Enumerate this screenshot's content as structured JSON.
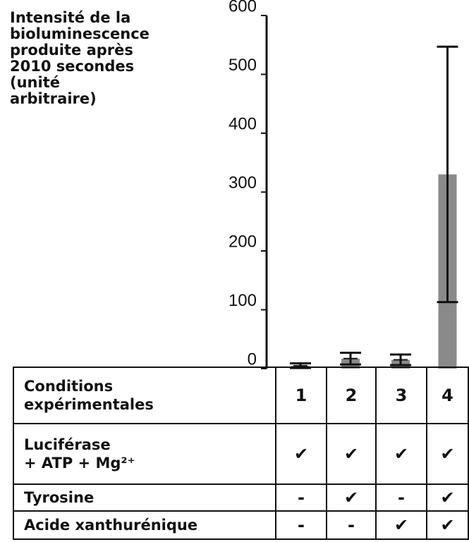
{
  "chart_data": {
    "type": "bar",
    "ylabel_lines": [
      "Intensité de la",
      "bioluminescence",
      "produite après",
      "2010 secondes",
      "(unité",
      "arbitraire)"
    ],
    "categories": [
      "1",
      "2",
      "3",
      "4"
    ],
    "values": [
      5,
      17,
      15,
      330
    ],
    "errors": [
      4,
      10,
      9,
      217
    ],
    "color": "#8a8a8a",
    "ylim": [
      0,
      600
    ],
    "yticks": [
      0,
      100,
      200,
      300,
      400,
      500,
      600
    ]
  },
  "table": {
    "header_lines": [
      "Conditions",
      "expérimentales"
    ],
    "rows": [
      {
        "label_lines": [
          "Luciférase",
          "+ ATP + Mg²⁺"
        ],
        "cells": [
          "✔",
          "✔",
          "✔",
          "✔"
        ]
      },
      {
        "label_lines": [
          "Tyrosine"
        ],
        "cells": [
          "-",
          "✔",
          "-",
          "✔"
        ]
      },
      {
        "label_lines": [
          "Acide xanthurénique"
        ],
        "cells": [
          "-",
          "-",
          "✔",
          "✔"
        ]
      }
    ]
  }
}
